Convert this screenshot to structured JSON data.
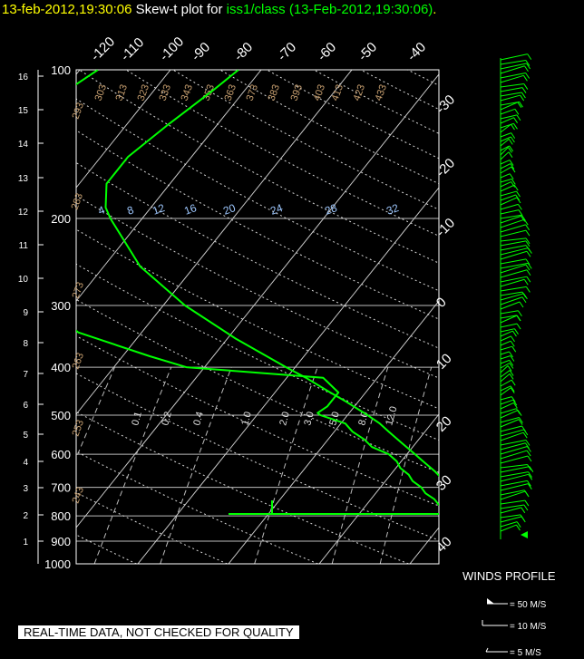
{
  "title": {
    "date_text": "13-feb-2012,19:30:06",
    "mid_text": "  Skew-t plot for ",
    "source_text": "iss1/class (13-Feb-2012,19:30:06)",
    "end_text": "."
  },
  "footer_text": "REAL-TIME DATA, NOT CHECKED FOR QUALITY",
  "winds_title": "WINDS PROFILE",
  "wind_legend": [
    "= 50 M/S",
    "= 10 M/S",
    "= 5 M/S"
  ],
  "colors": {
    "temperature": "#00ff00",
    "dewpoint": "#00ff00",
    "grid": "#ffffff",
    "dry_adiabats": "#c8a070",
    "mixing_ratio": "#9ec8ff",
    "title_date": "#ffff00"
  },
  "chart_data": {
    "type": "line",
    "pressure_ticks": [
      "100",
      "200",
      "300",
      "400",
      "500",
      "600",
      "700",
      "800",
      "900",
      "1000"
    ],
    "height_ticks_km": [
      "16",
      "15",
      "14",
      "13",
      "12",
      "11",
      "10",
      "9",
      "8",
      "7",
      "6",
      "5",
      "4",
      "3",
      "2",
      "1"
    ],
    "temp_ticks_top": [
      "-120",
      "-110",
      "-100",
      "-90",
      "-80",
      "-70",
      "-60",
      "-50",
      "-40"
    ],
    "temp_ticks_right": [
      "-30",
      "-20",
      "-10",
      "0",
      "10",
      "20",
      "30",
      "40"
    ],
    "dry_adiabat_labels": [
      "293",
      "303",
      "313",
      "323",
      "333",
      "343",
      "353",
      "363",
      "373",
      "383",
      "393",
      "403",
      "413",
      "423",
      "433",
      "283",
      "273",
      "263",
      "253",
      "243"
    ],
    "mixing_ratio_labels": [
      "4",
      "8",
      "12",
      "16",
      "20",
      "24",
      "28",
      "32"
    ],
    "mixing_ratio_labels_low": [
      "0.1",
      "0.2",
      "0.4",
      "1.0",
      "2.0",
      "3.0",
      "5.0",
      "8.0",
      "12.0"
    ],
    "plim": [
      1000,
      100
    ],
    "series": [
      {
        "p": [
          800,
          790,
          760,
          740,
          720,
          700,
          680,
          650,
          620,
          600,
          570,
          540,
          520,
          500,
          470,
          450,
          420,
          400,
          350,
          300,
          250,
          200,
          190,
          170,
          150,
          130,
          110,
          100
        ],
        "t": [
          3.3,
          2.2,
          0.5,
          -0.5,
          -1.4,
          -2.1,
          -3.5,
          -5.4,
          -7.6,
          -9.1,
          -11.5,
          -14.0,
          -15.7,
          -17.8,
          -21.3,
          -23.9,
          -27.9,
          -31.0,
          -39.1,
          -47.6,
          -56.0,
          -63.5,
          -65.0,
          -67.0,
          -67.0,
          -65.5,
          -63.5,
          -62.5
        ]
      },
      {
        "p": [
          800,
          790,
          760,
          740,
          720,
          700,
          680,
          660,
          640,
          620,
          600,
          580,
          560,
          540,
          520,
          500,
          495,
          480,
          450,
          420,
          400,
          380,
          340,
          320,
          300,
          280,
          240,
          220,
          200,
          160,
          120,
          100
        ],
        "t": [
          2.5,
          1.0,
          -2.0,
          -3.0,
          -4.5,
          -5.5,
          -7.0,
          -8.0,
          -9.5,
          -10.5,
          -12.0,
          -14.5,
          -16.0,
          -18.0,
          -19.5,
          -23.0,
          -23.5,
          -23.0,
          -23.0,
          -26.0,
          -42.0,
          -47.0,
          -57.0,
          -60.0,
          -66.0,
          -69.0,
          -75.0,
          -74.0,
          -78.0,
          -82.0,
          -81.0,
          -78.0
        ]
      }
    ],
    "wind_legend_speeds": [
      50,
      10,
      5
    ]
  }
}
